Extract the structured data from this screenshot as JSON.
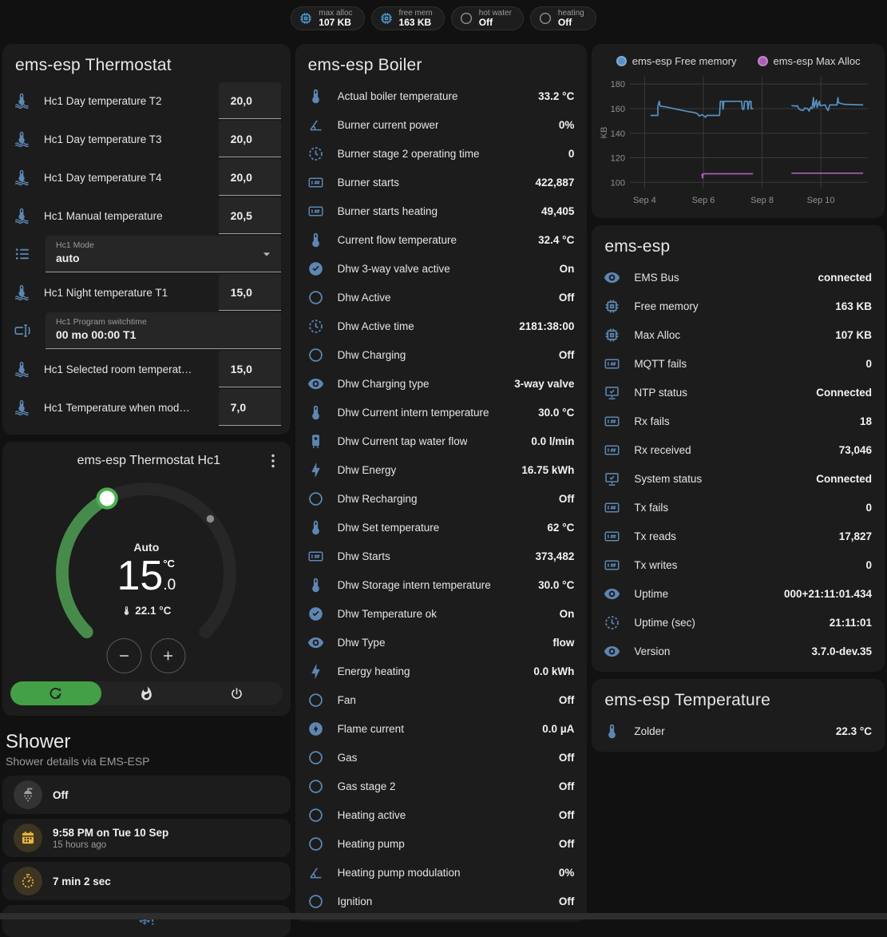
{
  "colors": {
    "page_bg": "#111111",
    "card_bg": "#1c1c1c",
    "accent_blue": "#5d87b2",
    "green_arc": "#478b4b",
    "green_bright": "#4caf50",
    "mode_active_green": "#43a047",
    "yellow": "#eab440",
    "gray_icon": "#9e9e9e",
    "chart_blue": "#5591c4",
    "chart_purple": "#a75fb5"
  },
  "header_badges": [
    {
      "icon": "memory",
      "icon_color": "#4d9fd6",
      "label": "max alloc",
      "value": "107 KB"
    },
    {
      "icon": "memory",
      "icon_color": "#4d9fd6",
      "label": "free mem",
      "value": "163 KB"
    },
    {
      "icon": "circle-outline",
      "icon_color": "#8a8a8a",
      "label": "hot water",
      "value": "Off"
    },
    {
      "icon": "circle-outline",
      "icon_color": "#8a8a8a",
      "label": "heating",
      "value": "Off"
    }
  ],
  "thermostat_card": {
    "title": "ems-esp Thermostat",
    "rows": [
      {
        "type": "number",
        "icon": "thermometer-water",
        "label": "Hc1 Day temperature T2",
        "value": "20,0"
      },
      {
        "type": "number",
        "icon": "thermometer-water",
        "label": "Hc1 Day temperature T3",
        "value": "20,0"
      },
      {
        "type": "number",
        "icon": "thermometer-water",
        "label": "Hc1 Day temperature T4",
        "value": "20,0"
      },
      {
        "type": "number",
        "icon": "thermometer-water",
        "label": "Hc1 Manual temperature",
        "value": "20,5"
      },
      {
        "type": "select",
        "icon": "format-list",
        "label": "Hc1 Mode",
        "value": "auto"
      },
      {
        "type": "number",
        "icon": "thermometer-water",
        "label": "Hc1 Night temperature T1",
        "value": "15,0"
      },
      {
        "type": "text",
        "icon": "form-textbox",
        "label": "Hc1 Program switchtime",
        "value": "00 mo 00:00 T1"
      },
      {
        "type": "number",
        "icon": "thermometer-water",
        "label": "Hc1 Selected room temperat…",
        "value": "15,0"
      },
      {
        "type": "number",
        "icon": "thermometer-water",
        "label": "Hc1 Temperature when mod…",
        "value": "7,0"
      }
    ]
  },
  "hc1_card": {
    "title": "ems-esp Thermostat Hc1",
    "mode_label": "Auto",
    "target_int": "15",
    "target_dec": ".0",
    "target_unit": "°C",
    "current": "22.1 °C",
    "modes": [
      {
        "icon": "thermostat-auto",
        "active": true
      },
      {
        "icon": "fire",
        "active": false
      },
      {
        "icon": "power",
        "active": false
      }
    ]
  },
  "shower": {
    "title": "Shower",
    "subtitle": "Shower details via EMS-ESP",
    "rows": [
      {
        "icon": "shower",
        "icon_color": "#9e9e9e",
        "icon_bg": "rgba(158,158,158,0.18)",
        "label": "Off"
      },
      {
        "icon": "calendar",
        "icon_color": "#eab440",
        "icon_bg": "rgba(234,180,64,0.16)",
        "label": "9:58 PM on Tue 10 Sep",
        "sub": "15 hours ago"
      },
      {
        "icon": "timer",
        "icon_color": "#eab440",
        "icon_bg": "rgba(234,180,64,0.16)",
        "label": "7 min 2 sec"
      }
    ],
    "alert_icon": "snowflake-alert"
  },
  "boiler_card": {
    "title": "ems-esp Boiler",
    "rows": [
      {
        "icon": "thermometer",
        "label": "Actual boiler temperature",
        "value": "33.2 °C"
      },
      {
        "icon": "angle-acute",
        "label": "Burner current power",
        "value": "0%"
      },
      {
        "icon": "progress-clock",
        "label": "Burner stage 2 operating time",
        "value": "0"
      },
      {
        "icon": "counter",
        "label": "Burner starts",
        "value": "422,887"
      },
      {
        "icon": "counter",
        "label": "Burner starts heating",
        "value": "49,405"
      },
      {
        "icon": "thermometer",
        "label": "Current flow temperature",
        "value": "32.4 °C"
      },
      {
        "icon": "check-circle",
        "label": "Dhw 3-way valve active",
        "value": "On"
      },
      {
        "icon": "circle-outline",
        "label": "Dhw Active",
        "value": "Off"
      },
      {
        "icon": "progress-clock",
        "label": "Dhw Active time",
        "value": "2181:38:00"
      },
      {
        "icon": "circle-outline",
        "label": "Dhw Charging",
        "value": "Off"
      },
      {
        "icon": "eye",
        "label": "Dhw Charging type",
        "value": "3-way valve"
      },
      {
        "icon": "thermometer",
        "label": "Dhw Current intern temperature",
        "value": "30.0 °C"
      },
      {
        "icon": "water-boiler",
        "label": "Dhw Current tap water flow",
        "value": "0.0 l/min"
      },
      {
        "icon": "lightning",
        "label": "Dhw Energy",
        "value": "16.75 kWh"
      },
      {
        "icon": "circle-outline",
        "label": "Dhw Recharging",
        "value": "Off"
      },
      {
        "icon": "thermometer",
        "label": "Dhw Set temperature",
        "value": "62 °C"
      },
      {
        "icon": "counter",
        "label": "Dhw Starts",
        "value": "373,482"
      },
      {
        "icon": "thermometer",
        "label": "Dhw Storage intern temperature",
        "value": "30.0 °C"
      },
      {
        "icon": "check-circle",
        "label": "Dhw Temperature ok",
        "value": "On"
      },
      {
        "icon": "eye",
        "label": "Dhw Type",
        "value": "flow"
      },
      {
        "icon": "lightning",
        "label": "Energy heating",
        "value": "0.0 kWh"
      },
      {
        "icon": "circle-outline",
        "label": "Fan",
        "value": "Off"
      },
      {
        "icon": "flash-circle",
        "label": "Flame current",
        "value": "0.0 µA"
      },
      {
        "icon": "circle-outline",
        "label": "Gas",
        "value": "Off"
      },
      {
        "icon": "circle-outline",
        "label": "Gas stage 2",
        "value": "Off"
      },
      {
        "icon": "circle-outline",
        "label": "Heating active",
        "value": "Off"
      },
      {
        "icon": "circle-outline",
        "label": "Heating pump",
        "value": "Off"
      },
      {
        "icon": "angle-acute",
        "label": "Heating pump modulation",
        "value": "0%"
      },
      {
        "icon": "circle-outline",
        "label": "Ignition",
        "value": "Off"
      }
    ]
  },
  "system_card": {
    "title": "ems-esp",
    "rows": [
      {
        "icon": "eye",
        "label": "EMS Bus",
        "value": "connected"
      },
      {
        "icon": "memory",
        "label": "Free memory",
        "value": "163 KB"
      },
      {
        "icon": "memory",
        "label": "Max Alloc",
        "value": "107 KB"
      },
      {
        "icon": "counter",
        "label": "MQTT fails",
        "value": "0"
      },
      {
        "icon": "monitor-check",
        "label": "NTP status",
        "value": "Connected"
      },
      {
        "icon": "counter",
        "label": "Rx fails",
        "value": "18"
      },
      {
        "icon": "counter",
        "label": "Rx received",
        "value": "73,046"
      },
      {
        "icon": "monitor-check",
        "label": "System status",
        "value": "Connected"
      },
      {
        "icon": "counter",
        "label": "Tx fails",
        "value": "0"
      },
      {
        "icon": "counter",
        "label": "Tx reads",
        "value": "17,827"
      },
      {
        "icon": "counter",
        "label": "Tx writes",
        "value": "0"
      },
      {
        "icon": "eye",
        "label": "Uptime",
        "value": "000+21:11:01.434"
      },
      {
        "icon": "progress-clock",
        "label": "Uptime (sec)",
        "value": "21:11:01"
      },
      {
        "icon": "eye",
        "label": "Version",
        "value": "3.7.0-dev.35"
      }
    ]
  },
  "temperature_card": {
    "title": "ems-esp Temperature",
    "rows": [
      {
        "icon": "thermometer",
        "label": "Zolder",
        "value": "22.3 °C"
      }
    ]
  },
  "chart_data": {
    "type": "line",
    "title": "",
    "xlabel": "",
    "ylabel": "KB",
    "grid": true,
    "legend_position": "top",
    "y_ticks": [
      100,
      120,
      140,
      160,
      180
    ],
    "y_domain": [
      95,
      186
    ],
    "x_ticks": [
      {
        "v": 4,
        "label": "Sep 4"
      },
      {
        "v": 6,
        "label": "Sep 6"
      },
      {
        "v": 8,
        "label": "Sep 8"
      },
      {
        "v": 10,
        "label": "Sep 10"
      }
    ],
    "x_domain": [
      3.5,
      11.6
    ],
    "series": [
      {
        "name": "ems-esp Free memory",
        "color": "#5591c4",
        "segments": [
          [
            [
              4.2,
              154.5
            ],
            [
              4.45,
              154.5
            ],
            [
              4.45,
              162
            ],
            [
              4.5,
              166
            ],
            [
              4.53,
              162
            ],
            [
              4.7,
              161.5
            ],
            [
              4.9,
              160.5
            ],
            [
              5.1,
              159.5
            ],
            [
              5.3,
              158.5
            ],
            [
              5.5,
              157.5
            ],
            [
              5.65,
              157
            ],
            [
              5.8,
              156
            ],
            [
              5.85,
              154
            ],
            [
              5.95,
              155
            ],
            [
              6.0,
              154.5
            ],
            [
              6.07,
              153
            ],
            [
              6.12,
              154.5
            ],
            [
              6.55,
              154.5
            ],
            [
              6.58,
              166
            ],
            [
              6.65,
              166
            ],
            [
              6.67,
              159.5
            ],
            [
              6.7,
              166
            ],
            [
              7.3,
              166
            ],
            [
              7.33,
              159.5
            ],
            [
              7.38,
              159.5
            ],
            [
              7.4,
              166
            ],
            [
              7.5,
              166
            ],
            [
              7.52,
              159.5
            ],
            [
              7.57,
              166
            ],
            [
              7.62,
              166
            ],
            [
              7.63,
              160
            ],
            [
              7.69,
              160
            ]
          ],
          [
            [
              9.0,
              162.5
            ],
            [
              9.15,
              162
            ],
            [
              9.2,
              162.5
            ],
            [
              9.25,
              160
            ],
            [
              9.3,
              159
            ],
            [
              9.4,
              158.5
            ],
            [
              9.45,
              160.5
            ],
            [
              9.55,
              160
            ],
            [
              9.6,
              158
            ],
            [
              9.65,
              161
            ],
            [
              9.7,
              160
            ],
            [
              9.75,
              169
            ],
            [
              9.77,
              161
            ],
            [
              9.85,
              167
            ],
            [
              9.87,
              161
            ],
            [
              9.95,
              166
            ],
            [
              9.97,
              162.5
            ],
            [
              10.15,
              163
            ],
            [
              10.2,
              160
            ],
            [
              10.25,
              158.5
            ],
            [
              10.3,
              163
            ],
            [
              10.55,
              163
            ],
            [
              10.58,
              169
            ],
            [
              10.6,
              165
            ],
            [
              10.7,
              164
            ],
            [
              10.8,
              163.5
            ],
            [
              11.44,
              163
            ]
          ]
        ]
      },
      {
        "name": "ems-esp Max Alloc",
        "color": "#a75fb5",
        "segments": [
          [
            [
              5.95,
              107
            ],
            [
              5.97,
              103.5
            ],
            [
              6.0,
              107
            ],
            [
              7.69,
              107
            ]
          ],
          [
            [
              9.0,
              107.5
            ],
            [
              11.44,
              107.5
            ]
          ]
        ]
      }
    ]
  }
}
